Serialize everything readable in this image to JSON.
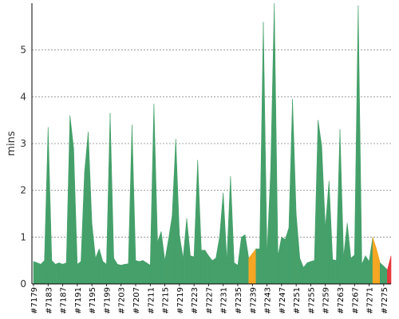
{
  "chart_data": {
    "type": "area",
    "title": "",
    "xlabel": "",
    "ylabel": "mins",
    "ylim": [
      0,
      6
    ],
    "yticks": [
      0,
      1,
      2,
      3,
      4,
      5
    ],
    "grid": true,
    "x_tick_labels": [
      "#7179",
      "#7183",
      "#7187",
      "#7191",
      "#7195",
      "#7199",
      "#7203",
      "#7207",
      "#7211",
      "#7215",
      "#7219",
      "#7223",
      "#7227",
      "#7231",
      "#7235",
      "#7239",
      "#7243",
      "#7247",
      "#7251",
      "#7255",
      "#7259",
      "#7263",
      "#7267",
      "#7271",
      "#7275"
    ],
    "builds": {
      "first": 7179,
      "last": 7277,
      "values": [
        0.48,
        0.45,
        0.42,
        0.5,
        3.35,
        0.5,
        0.42,
        0.45,
        0.42,
        0.45,
        3.6,
        2.9,
        0.42,
        0.48,
        2.4,
        3.25,
        1.3,
        0.55,
        0.75,
        0.48,
        0.42,
        3.65,
        0.55,
        0.42,
        0.4,
        0.42,
        0.43,
        3.4,
        0.5,
        0.48,
        0.5,
        0.45,
        0.4,
        3.85,
        0.9,
        1.12,
        0.5,
        0.95,
        1.45,
        3.1,
        1.05,
        0.55,
        1.4,
        0.6,
        0.58,
        2.65,
        0.72,
        0.72,
        0.6,
        0.5,
        0.55,
        1.0,
        1.95,
        0.5,
        2.3,
        0.45,
        0.4,
        1.0,
        1.05,
        0.55,
        0.65,
        0.75,
        0.75,
        5.6,
        0.65,
        2.4,
        6.0,
        0.6,
        1.0,
        0.95,
        1.2,
        3.95,
        1.5,
        0.55,
        0.35,
        0.45,
        0.48,
        0.5,
        3.5,
        2.95,
        1.2,
        2.2,
        0.52,
        0.5,
        3.3,
        0.58,
        1.3,
        0.55,
        0.62,
        5.95,
        0.42,
        0.6,
        0.48,
        1.0,
        0.75,
        0.45,
        0.38,
        0.3,
        0.6
      ]
    },
    "series": [
      {
        "name": "",
        "color": "#45a06a"
      }
    ],
    "highlights": [
      {
        "build": 7238,
        "color": "#f5a623"
      },
      {
        "build": 7239,
        "color": "#f5a623"
      },
      {
        "build": 7272,
        "color": "#f5a623"
      },
      {
        "build": 7273,
        "color": "#f5a623"
      },
      {
        "build": 7276,
        "color": "#e8373d"
      }
    ],
    "colors": {
      "success": "#45a06a",
      "unstable": "#f5a623",
      "failure": "#e8373d",
      "grid": "#888888",
      "axis": "#000000",
      "label": "#333333"
    }
  }
}
